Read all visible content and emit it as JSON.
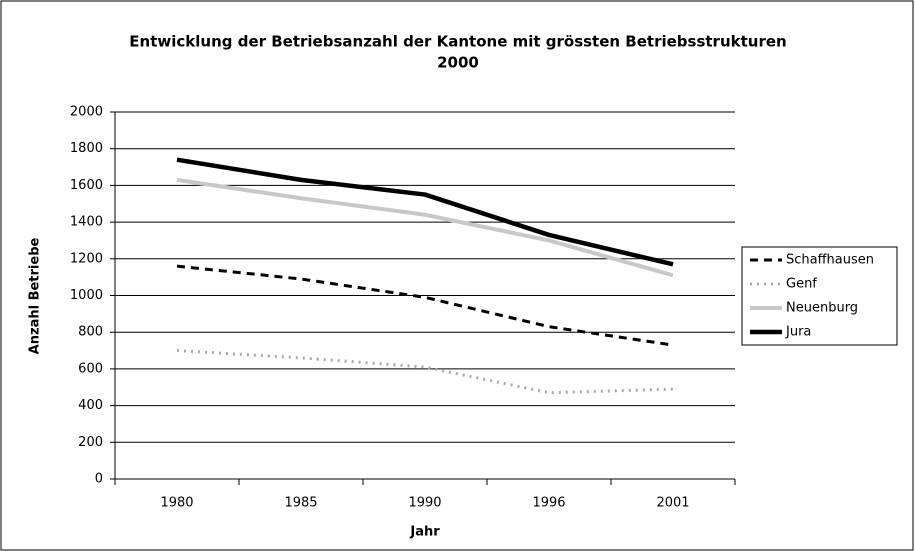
{
  "chart_data": {
    "type": "line",
    "title": "Entwicklung der Betriebsanzahl der Kantone mit grössten Betriebsstrukturen",
    "subtitle": "2000",
    "x_label": "Jahr",
    "y_label": "Anzahl Betriebe",
    "categories": [
      "1980",
      "1985",
      "1990",
      "1996",
      "2001"
    ],
    "series": [
      {
        "name": "Schaffhausen",
        "color": "#000000",
        "style": "dashed",
        "values": [
          1160,
          1090,
          990,
          830,
          730
        ]
      },
      {
        "name": "Genf",
        "color": "#aaaaaa",
        "style": "dotted",
        "values": [
          700,
          660,
          610,
          470,
          490
        ]
      },
      {
        "name": "Neuenburg",
        "color": "#c8c8c8",
        "style": "solid",
        "values": [
          1630,
          1530,
          1440,
          1300,
          1110
        ]
      },
      {
        "name": "Jura",
        "color": "#000000",
        "style": "bold",
        "values": [
          1740,
          1630,
          1550,
          1330,
          1170
        ]
      }
    ],
    "ylim": [
      0,
      2000
    ],
    "yticks": [
      0,
      200,
      400,
      600,
      800,
      1000,
      1200,
      1400,
      1600,
      1800,
      2000
    ],
    "grid": true,
    "legend": "right"
  }
}
